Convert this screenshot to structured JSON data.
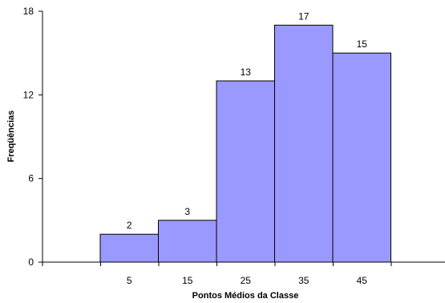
{
  "chart_data": {
    "type": "bar",
    "title": "",
    "xlabel": "Pontos Médios da Classe",
    "ylabel": "Freqüências",
    "categories": [
      "5",
      "15",
      "25",
      "35",
      "45"
    ],
    "values": [
      2,
      3,
      13,
      17,
      15
    ],
    "data_labels": [
      "2",
      "3",
      "13",
      "17",
      "15"
    ],
    "yticks": [
      "0",
      "6",
      "12",
      "18"
    ],
    "ylim": [
      0,
      18
    ],
    "grid": false,
    "legend": false,
    "bar_color": "#9999ff",
    "bar_stroke": "#000000"
  }
}
